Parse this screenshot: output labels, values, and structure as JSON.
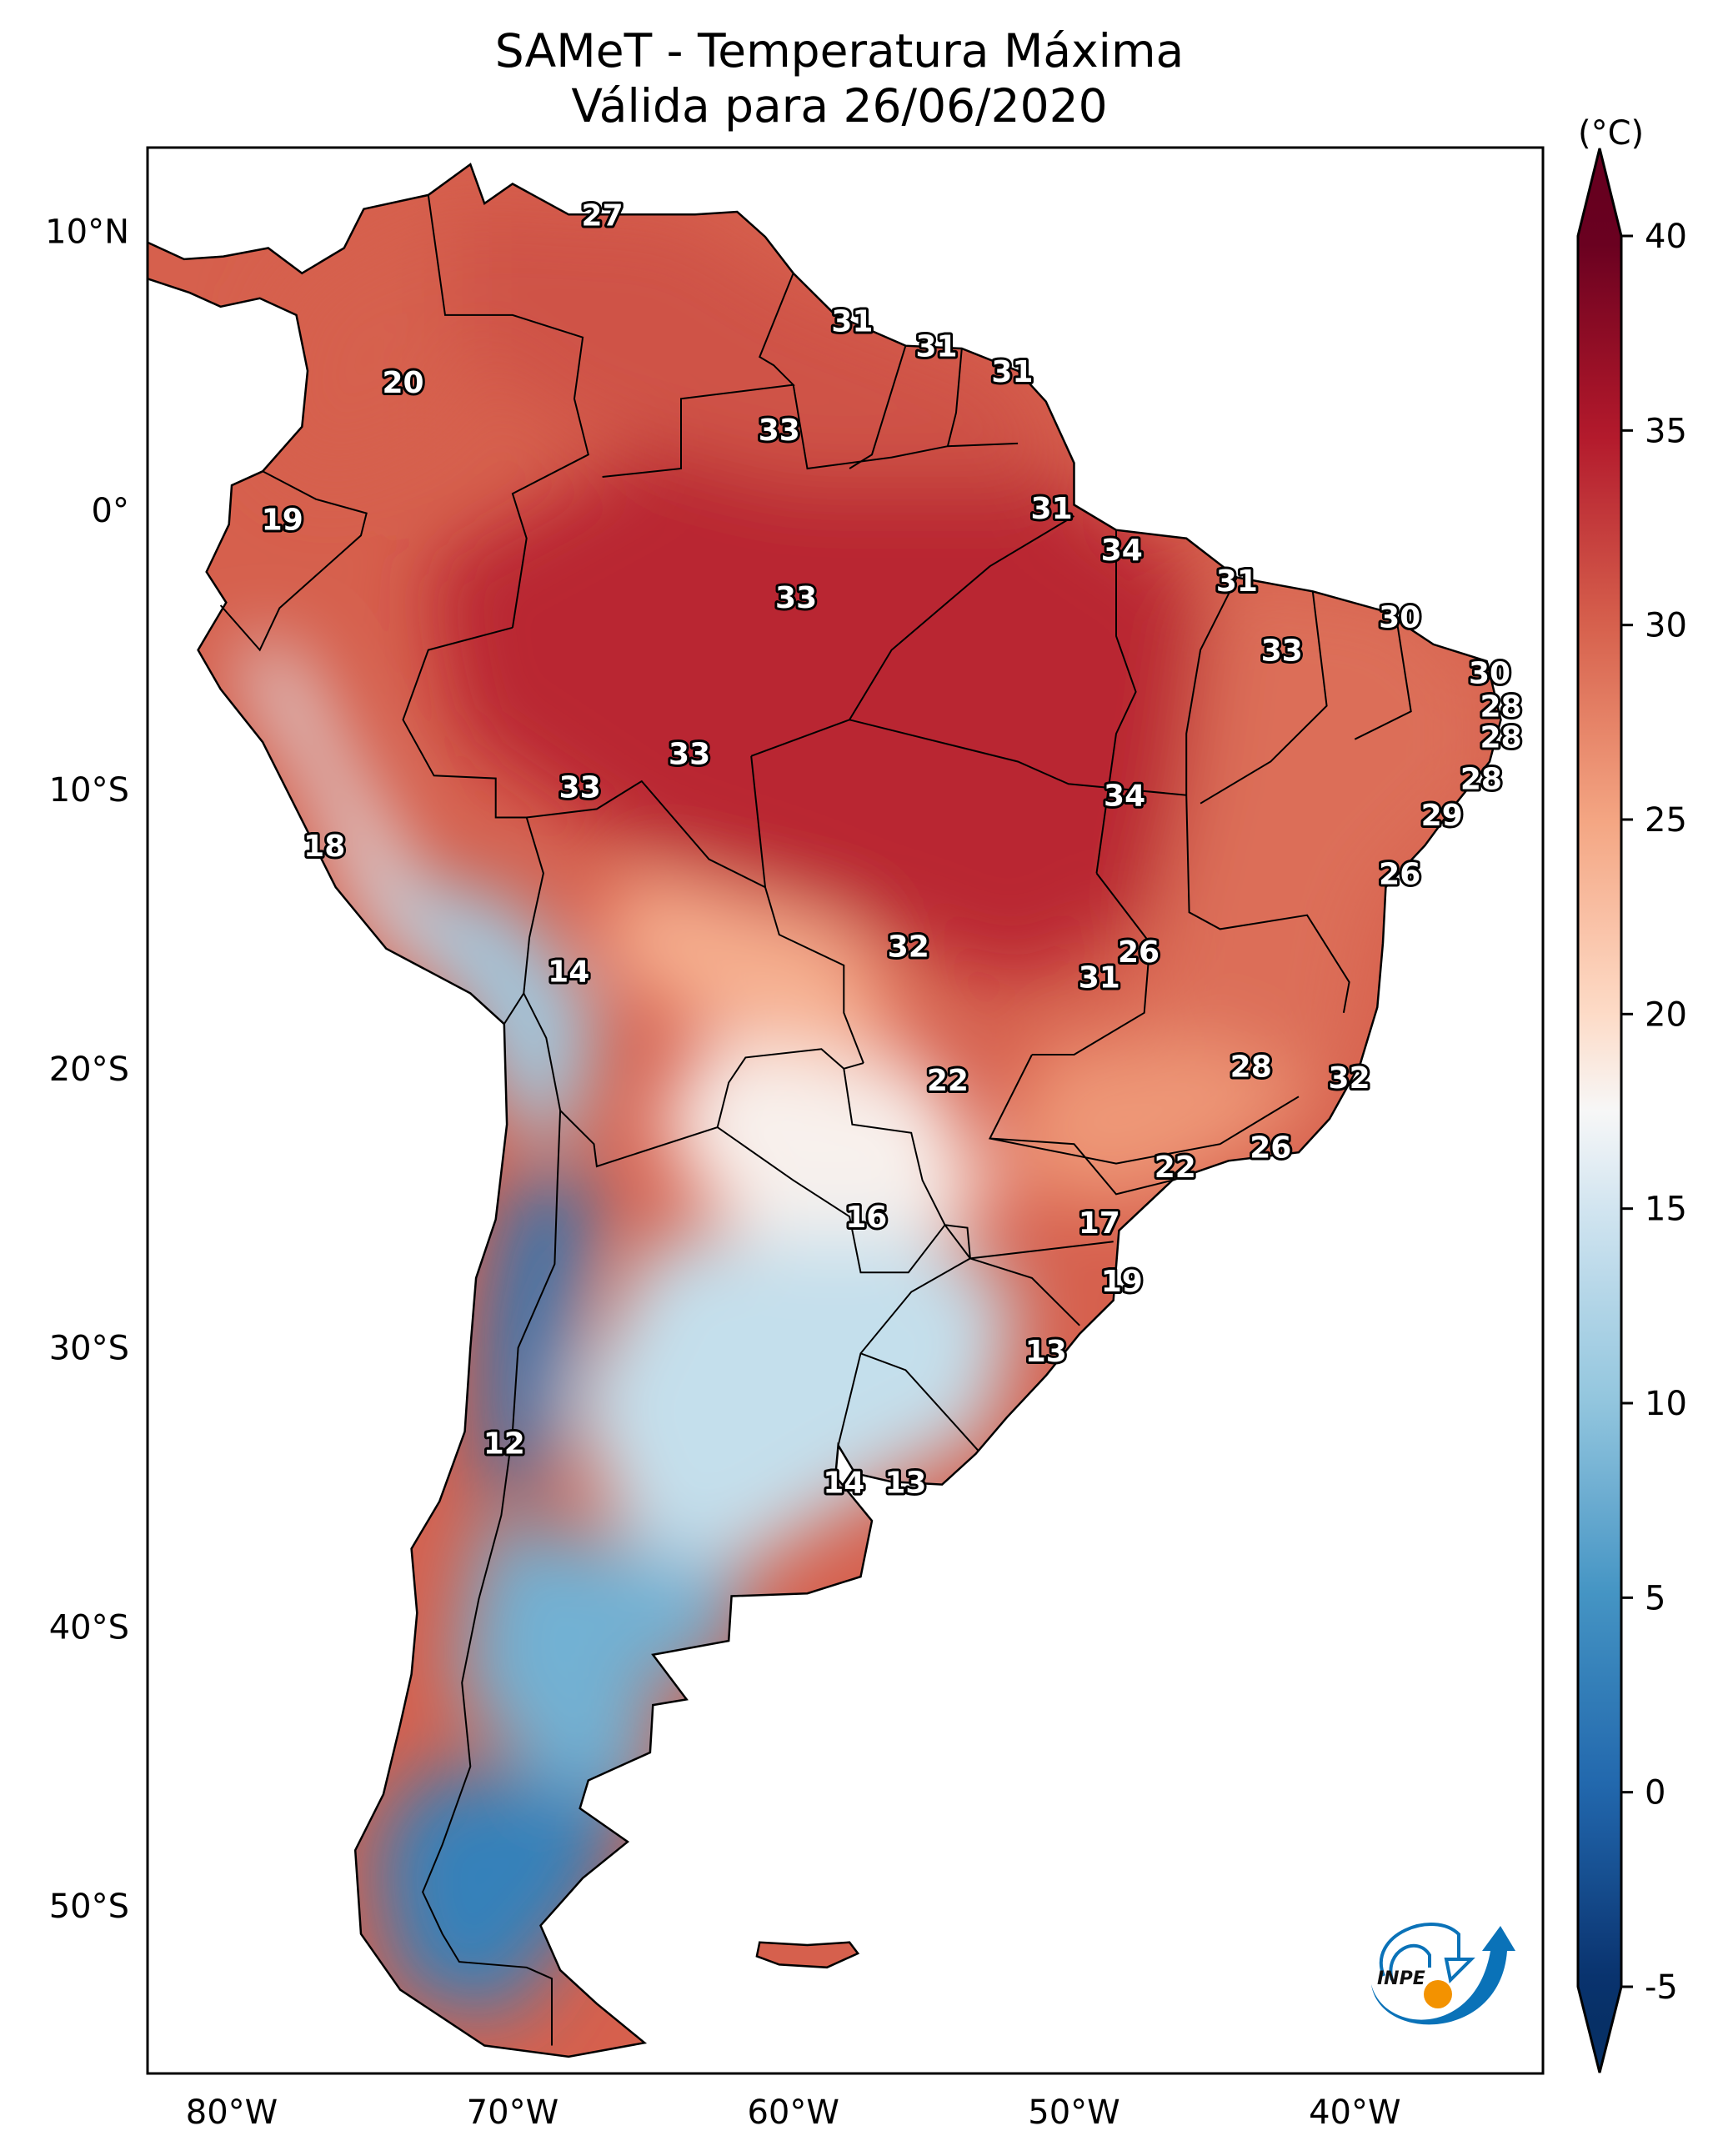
{
  "title": {
    "line1": "SAMeT - Temperatura Máxima",
    "line2": "Válida para 26/06/2020"
  },
  "logo": {
    "text": "INPE",
    "blue": "#0a72b8",
    "orange": "#f39200"
  },
  "chart_data": {
    "type": "heatmap",
    "title": "SAMeT - Temperatura Máxima — Válida para 26/06/2020",
    "variable": "Temperatura Máxima",
    "valid_date": "26/06/2020",
    "projection": "PlateCarree",
    "extent": {
      "lon": [
        -83.0,
        -33.3
      ],
      "lat": [
        -56.0,
        13.0
      ]
    },
    "x_ticks": [
      {
        "value": -80,
        "label": "80°W"
      },
      {
        "value": -70,
        "label": "70°W"
      },
      {
        "value": -60,
        "label": "60°W"
      },
      {
        "value": -50,
        "label": "50°W"
      },
      {
        "value": -40,
        "label": "40°W"
      }
    ],
    "y_ticks": [
      {
        "value": 10,
        "label": "10°N"
      },
      {
        "value": 0,
        "label": "0°"
      },
      {
        "value": -10,
        "label": "10°S"
      },
      {
        "value": -20,
        "label": "20°S"
      },
      {
        "value": -30,
        "label": "30°S"
      },
      {
        "value": -40,
        "label": "40°S"
      },
      {
        "value": -50,
        "label": "50°S"
      }
    ],
    "colorbar": {
      "unit": "(°C)",
      "cmap": "RdBu_r",
      "range": [
        -5,
        40
      ],
      "extend": "both",
      "ticks": [
        {
          "value": 40,
          "label": "40"
        },
        {
          "value": 35,
          "label": "35"
        },
        {
          "value": 30,
          "label": "30"
        },
        {
          "value": 25,
          "label": "25"
        },
        {
          "value": 20,
          "label": "20"
        },
        {
          "value": 15,
          "label": "15"
        },
        {
          "value": 10,
          "label": "10"
        },
        {
          "value": 5,
          "label": "5"
        },
        {
          "value": 0,
          "label": "0"
        },
        {
          "value": -5,
          "label": "-5"
        }
      ],
      "stops": [
        {
          "value": -7,
          "color": "#053061"
        },
        {
          "value": -5,
          "color": "#08306b"
        },
        {
          "value": 0,
          "color": "#2166ac"
        },
        {
          "value": 5,
          "color": "#4393c3"
        },
        {
          "value": 10,
          "color": "#92c5de"
        },
        {
          "value": 15,
          "color": "#d1e5f0"
        },
        {
          "value": 17.5,
          "color": "#f7f7f7"
        },
        {
          "value": 20,
          "color": "#fddbc7"
        },
        {
          "value": 25,
          "color": "#f4a582"
        },
        {
          "value": 30,
          "color": "#d6604d"
        },
        {
          "value": 35,
          "color": "#b2182b"
        },
        {
          "value": 40,
          "color": "#67001f"
        }
      ]
    },
    "point_labels": [
      {
        "lon": -66.8,
        "lat": 10.6,
        "value": 27
      },
      {
        "lon": -73.9,
        "lat": 4.6,
        "value": 20
      },
      {
        "lon": -78.2,
        "lat": -0.3,
        "value": 19
      },
      {
        "lon": -57.9,
        "lat": 6.8,
        "value": 31
      },
      {
        "lon": -54.9,
        "lat": 5.9,
        "value": 31
      },
      {
        "lon": -52.2,
        "lat": 5.0,
        "value": 31
      },
      {
        "lon": -60.5,
        "lat": 2.9,
        "value": 33
      },
      {
        "lon": -50.8,
        "lat": 0.1,
        "value": 31
      },
      {
        "lon": -59.9,
        "lat": -3.1,
        "value": 33
      },
      {
        "lon": -48.3,
        "lat": -1.4,
        "value": 34
      },
      {
        "lon": -44.2,
        "lat": -2.5,
        "value": 31
      },
      {
        "lon": -38.4,
        "lat": -3.8,
        "value": 30
      },
      {
        "lon": -42.6,
        "lat": -5.0,
        "value": 33
      },
      {
        "lon": -35.2,
        "lat": -5.8,
        "value": 30
      },
      {
        "lon": -34.8,
        "lat": -7.0,
        "value": 28
      },
      {
        "lon": -34.8,
        "lat": -8.1,
        "value": 28
      },
      {
        "lon": -35.5,
        "lat": -9.6,
        "value": 28
      },
      {
        "lon": -36.9,
        "lat": -10.9,
        "value": 29
      },
      {
        "lon": -38.4,
        "lat": -13.0,
        "value": 26
      },
      {
        "lon": -48.2,
        "lat": -10.2,
        "value": 34
      },
      {
        "lon": -63.7,
        "lat": -8.7,
        "value": 33
      },
      {
        "lon": -67.6,
        "lat": -9.9,
        "value": 33
      },
      {
        "lon": -76.7,
        "lat": -12.0,
        "value": 18
      },
      {
        "lon": -68.0,
        "lat": -16.5,
        "value": 14
      },
      {
        "lon": -55.9,
        "lat": -15.6,
        "value": 32
      },
      {
        "lon": -47.7,
        "lat": -15.8,
        "value": 26
      },
      {
        "lon": -49.1,
        "lat": -16.7,
        "value": 31
      },
      {
        "lon": -54.5,
        "lat": -20.4,
        "value": 22
      },
      {
        "lon": -43.7,
        "lat": -19.9,
        "value": 28
      },
      {
        "lon": -40.2,
        "lat": -20.3,
        "value": 32
      },
      {
        "lon": -46.4,
        "lat": -23.5,
        "value": 22
      },
      {
        "lon": -43.0,
        "lat": -22.8,
        "value": 26
      },
      {
        "lon": -57.4,
        "lat": -25.3,
        "value": 16
      },
      {
        "lon": -49.1,
        "lat": -25.5,
        "value": 17
      },
      {
        "lon": -48.3,
        "lat": -27.6,
        "value": 19
      },
      {
        "lon": -51.0,
        "lat": -30.1,
        "value": 13
      },
      {
        "lon": -70.3,
        "lat": -33.4,
        "value": 12
      },
      {
        "lon": -58.2,
        "lat": -34.8,
        "value": 14
      },
      {
        "lon": -56.0,
        "lat": -34.8,
        "value": 13
      }
    ],
    "field_regions": [
      {
        "name": "amazon-core",
        "value": 34,
        "poly": [
          [
            -73,
            -2
          ],
          [
            -62,
            4
          ],
          [
            -52,
            2
          ],
          [
            -46,
            -2
          ],
          [
            -44,
            -6
          ],
          [
            -46,
            -14
          ],
          [
            -52,
            -17
          ],
          [
            -60,
            -14
          ],
          [
            -66,
            -12
          ],
          [
            -72,
            -8
          ]
        ]
      },
      {
        "name": "northeast-brazil",
        "value": 29,
        "poly": [
          [
            -45,
            -2
          ],
          [
            -38,
            -3
          ],
          [
            -35,
            -6
          ],
          [
            -35,
            -10
          ],
          [
            -39,
            -14
          ],
          [
            -40,
            -20
          ],
          [
            -45,
            -22
          ],
          [
            -48,
            -18
          ],
          [
            -46,
            -10
          ]
        ]
      },
      {
        "name": "venezuela-guianas",
        "value": 31,
        "poly": [
          [
            -72,
            11
          ],
          [
            -64,
            10.5
          ],
          [
            -60,
            8
          ],
          [
            -52,
            5
          ],
          [
            -50,
            1
          ],
          [
            -60,
            1
          ],
          [
            -68,
            3
          ],
          [
            -72,
            6
          ]
        ]
      },
      {
        "name": "colombia-west",
        "value": 30,
        "poly": [
          [
            -78,
            8
          ],
          [
            -72,
            11
          ],
          [
            -72,
            3
          ],
          [
            -77,
            1
          ],
          [
            -79,
            3
          ]
        ]
      },
      {
        "name": "southeast-brazil",
        "value": 26,
        "poly": [
          [
            -51,
            -19
          ],
          [
            -45,
            -19
          ],
          [
            -41,
            -21
          ],
          [
            -44,
            -23
          ],
          [
            -48,
            -25
          ],
          [
            -53,
            -24
          ]
        ]
      },
      {
        "name": "bolivia-lowlands",
        "value": 24,
        "poly": [
          [
            -66,
            -13
          ],
          [
            -58,
            -15
          ],
          [
            -56,
            -19
          ],
          [
            -60,
            -20
          ],
          [
            -64,
            -18
          ],
          [
            -67,
            -16
          ]
        ]
      },
      {
        "name": "chaco-paraguay",
        "value": 18,
        "poly": [
          [
            -63,
            -19
          ],
          [
            -55,
            -20
          ],
          [
            -53,
            -25
          ],
          [
            -57,
            -27
          ],
          [
            -62,
            -26
          ],
          [
            -65,
            -22
          ]
        ]
      },
      {
        "name": "pampa",
        "value": 14,
        "poly": [
          [
            -65,
            -26
          ],
          [
            -55,
            -26
          ],
          [
            -52,
            -28
          ],
          [
            -53,
            -33
          ],
          [
            -57,
            -35
          ],
          [
            -62,
            -38
          ],
          [
            -66,
            -37
          ],
          [
            -68,
            -32
          ]
        ]
      },
      {
        "name": "patagonia-north",
        "value": 8,
        "poly": [
          [
            -71,
            -36
          ],
          [
            -62,
            -38
          ],
          [
            -62,
            -41
          ],
          [
            -65,
            -42
          ],
          [
            -65,
            -46
          ],
          [
            -69,
            -46
          ],
          [
            -72,
            -42
          ]
        ]
      },
      {
        "name": "patagonia-south",
        "value": 3,
        "poly": [
          [
            -73,
            -45
          ],
          [
            -66,
            -46
          ],
          [
            -67,
            -50
          ],
          [
            -69,
            -52
          ],
          [
            -70,
            -54
          ],
          [
            -74,
            -53
          ],
          [
            -75,
            -48
          ]
        ]
      },
      {
        "name": "andes-central",
        "value": 2,
        "poly": [
          [
            -70,
            -24
          ],
          [
            -67,
            -24
          ],
          [
            -68,
            -30
          ],
          [
            -69,
            -35
          ],
          [
            -71,
            -35
          ],
          [
            -71,
            -29
          ]
        ]
      },
      {
        "name": "peru-coast",
        "value": 16,
        "poly": [
          [
            -80,
            -5
          ],
          [
            -77,
            -10
          ],
          [
            -75,
            -15
          ],
          [
            -71,
            -18
          ],
          [
            -73,
            -14
          ],
          [
            -76,
            -9
          ],
          [
            -78,
            -5
          ]
        ]
      },
      {
        "name": "altiplano",
        "value": 11,
        "poly": [
          [
            -75,
            -13
          ],
          [
            -70,
            -14
          ],
          [
            -67,
            -18
          ],
          [
            -68,
            -23
          ],
          [
            -70,
            -22
          ],
          [
            -72,
            -17
          ]
        ]
      }
    ]
  }
}
